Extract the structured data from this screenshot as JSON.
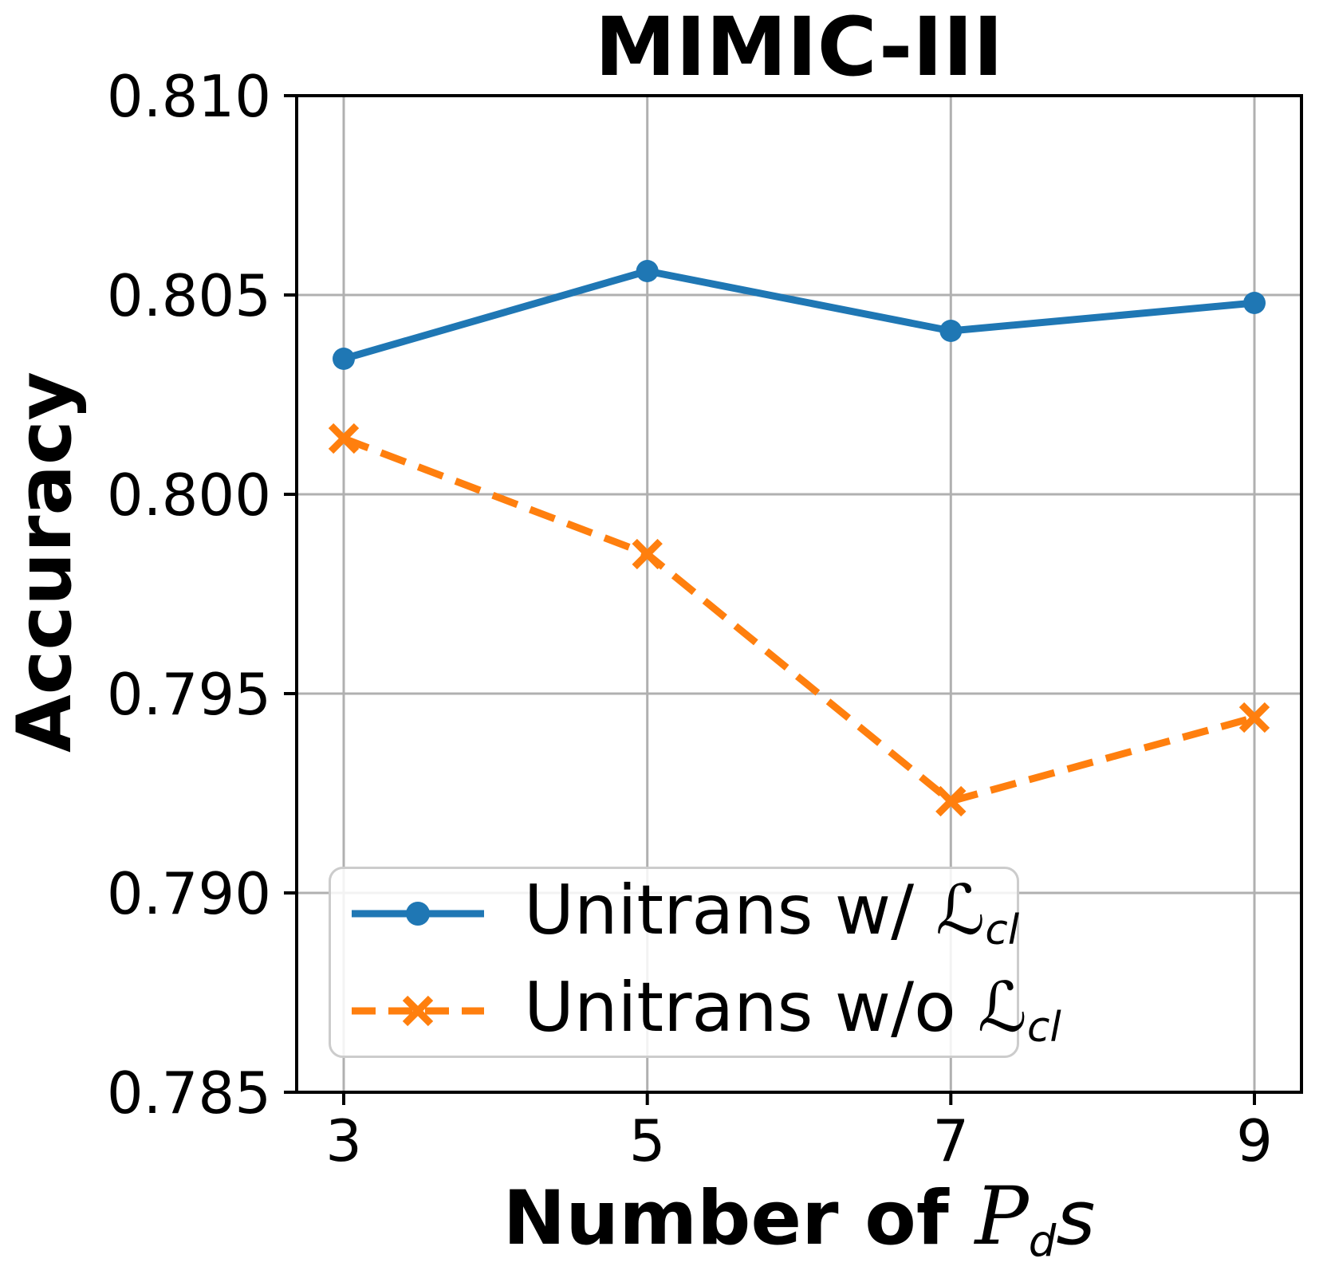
{
  "chart_data": {
    "type": "line",
    "title": "MIMIC-III",
    "ylabel": "Accuracy",
    "xlabel": "Number of 𝒫ds",
    "xlabel_parts": {
      "pre": "Number of ",
      "symbol": "P",
      "sub": "d",
      "suffix": "s"
    },
    "x": [
      3,
      5,
      7,
      9
    ],
    "xticks": [
      "3",
      "5",
      "7",
      "9"
    ],
    "yticks": [
      "0.810",
      "0.805",
      "0.800",
      "0.795",
      "0.790",
      "0.785"
    ],
    "ytick_values": [
      0.81,
      0.805,
      0.8,
      0.795,
      0.79,
      0.785
    ],
    "xlim": [
      2.69,
      9.31
    ],
    "ylim": [
      0.785,
      0.81
    ],
    "grid": true,
    "legend_position": "lower left",
    "colors": {
      "grid": "#b0b0b0",
      "axis": "#000000",
      "legend_border": "#cccccc"
    },
    "series": [
      {
        "label": "Unitrans w/ ℒcl",
        "label_pre": "Unitrans w/ ",
        "label_symbol": "ℒ",
        "label_sub": "cl",
        "color": "#1f77b4",
        "line_style": "solid",
        "marker": "circle",
        "values": [
          0.8034,
          0.8056,
          0.8041,
          0.8048
        ]
      },
      {
        "label": "Unitrans w/o ℒcl",
        "label_pre": "Unitrans w/o ",
        "label_symbol": "ℒ",
        "label_sub": "cl",
        "color": "#ff7f0e",
        "line_style": "dashed",
        "marker": "x",
        "values": [
          0.8014,
          0.7985,
          0.7923,
          0.7944
        ]
      }
    ]
  }
}
